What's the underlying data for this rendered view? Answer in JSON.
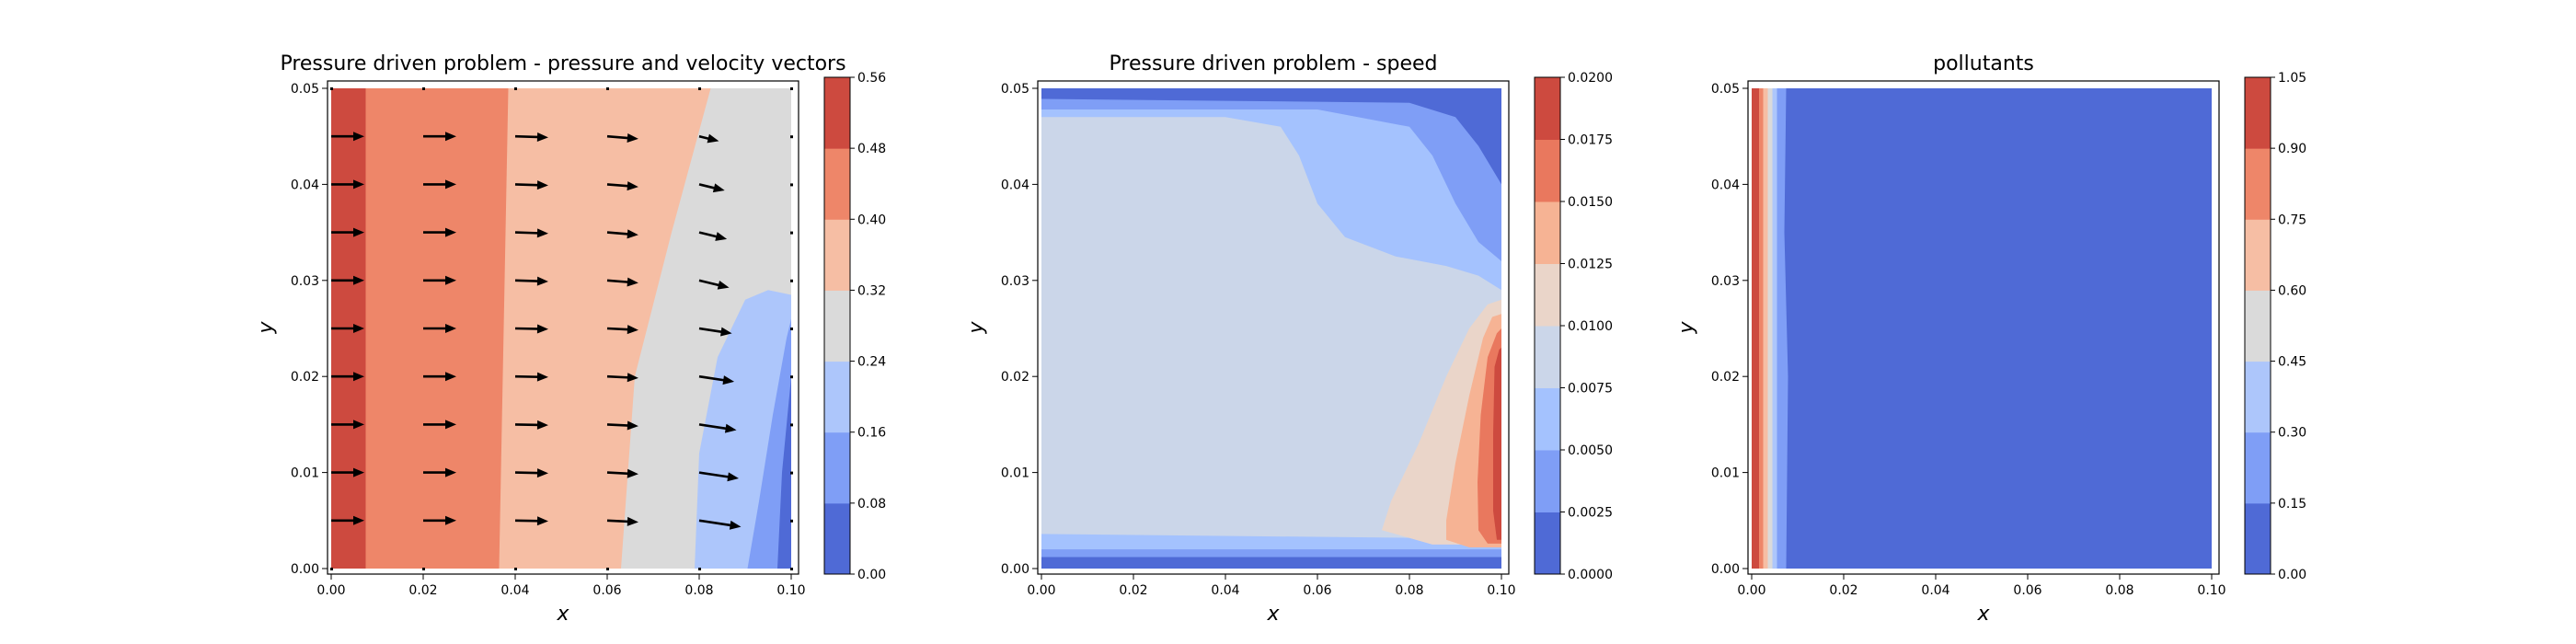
{
  "chart_data": [
    {
      "type": "contour",
      "title": "Pressure driven problem - pressure and velocity vectors",
      "xlabel": "x",
      "ylabel": "y",
      "xlim": [
        0.0,
        0.1
      ],
      "ylim": [
        0.0,
        0.05
      ],
      "xticks": [
        "0.00",
        "0.02",
        "0.04",
        "0.06",
        "0.08",
        "0.10"
      ],
      "yticks": [
        "0.00",
        "0.01",
        "0.02",
        "0.03",
        "0.04",
        "0.05"
      ],
      "colorbar": {
        "levels": [
          0.0,
          0.08,
          0.16,
          0.24,
          0.32,
          0.4,
          0.48,
          0.56
        ],
        "ticks": [
          "0.00",
          "0.08",
          "0.16",
          "0.24",
          "0.32",
          "0.40",
          "0.48",
          "0.56"
        ]
      },
      "pressure_band_boundaries": {
        "0.48": [
          [
            0.0075,
            0.0
          ],
          [
            0.0075,
            0.05
          ]
        ],
        "0.40": [
          [
            0.0365,
            0.0
          ],
          [
            0.0385,
            0.05
          ]
        ],
        "0.32": [
          [
            0.063,
            0.0
          ],
          [
            0.066,
            0.02
          ],
          [
            0.074,
            0.035
          ],
          [
            0.0825,
            0.05
          ]
        ],
        "0.24": [
          [
            0.079,
            0.0
          ],
          [
            0.08,
            0.012
          ],
          [
            0.084,
            0.022
          ],
          [
            0.09,
            0.028
          ],
          [
            0.095,
            0.029
          ],
          [
            0.1,
            0.0285
          ]
        ],
        "0.16": [
          [
            0.0905,
            0.0
          ],
          [
            0.093,
            0.007
          ],
          [
            0.096,
            0.016
          ],
          [
            0.099,
            0.024
          ],
          [
            0.1,
            0.026
          ]
        ]
      },
      "velocity_vectors": {
        "x": [
          0.0,
          0.02,
          0.04,
          0.06,
          0.08,
          0.1
        ],
        "y": [
          0.005,
          0.01,
          0.015,
          0.02,
          0.025,
          0.03,
          0.035,
          0.04,
          0.045
        ],
        "u_scale": 1.0,
        "v_by_column": [
          0.0,
          0.0,
          -0.02,
          -0.05,
          -0.15,
          0.0
        ]
      }
    },
    {
      "type": "contour",
      "title": "Pressure driven problem - speed",
      "xlabel": "x",
      "ylabel": "y",
      "xlim": [
        0.0,
        0.1
      ],
      "ylim": [
        0.0,
        0.05
      ],
      "xticks": [
        "0.00",
        "0.02",
        "0.04",
        "0.06",
        "0.08",
        "0.10"
      ],
      "yticks": [
        "0.00",
        "0.01",
        "0.02",
        "0.03",
        "0.04",
        "0.05"
      ],
      "colorbar": {
        "levels": [
          0.0,
          0.0025,
          0.005,
          0.0075,
          0.01,
          0.0125,
          0.015,
          0.0175,
          0.02
        ],
        "ticks": [
          "0.0000",
          "0.0025",
          "0.0050",
          "0.0075",
          "0.0100",
          "0.0125",
          "0.0150",
          "0.0175",
          "0.0200"
        ]
      }
    },
    {
      "type": "contour",
      "title": "pollutants",
      "xlabel": "x",
      "ylabel": "y",
      "xlim": [
        0.0,
        0.1
      ],
      "ylim": [
        0.0,
        0.05
      ],
      "xticks": [
        "0.00",
        "0.02",
        "0.04",
        "0.06",
        "0.08",
        "0.10"
      ],
      "yticks": [
        "0.00",
        "0.01",
        "0.02",
        "0.03",
        "0.04",
        "0.05"
      ],
      "colorbar": {
        "levels": [
          0.0,
          0.15,
          0.3,
          0.45,
          0.6,
          0.75,
          0.9,
          1.05
        ],
        "ticks": [
          "0.00",
          "0.15",
          "0.30",
          "0.45",
          "0.60",
          "0.75",
          "0.90",
          "1.05"
        ]
      },
      "band_boundaries_x": [
        0.0075,
        0.0055,
        0.0045,
        0.0035,
        0.0025,
        0.0016,
        0.0008
      ]
    }
  ],
  "colors": {
    "levels8": [
      "#4f6ad6",
      "#7f9ef6",
      "#adc6fb",
      "#dadada",
      "#f6bea4",
      "#ee8669",
      "#cd4a3f"
    ],
    "levels9": [
      "#4f6ad6",
      "#7f9ef6",
      "#a4c2fe",
      "#cbd6e9",
      "#ead5c9",
      "#f6b394",
      "#e9785e",
      "#cd4a3f"
    ],
    "arrow": "#000000"
  }
}
